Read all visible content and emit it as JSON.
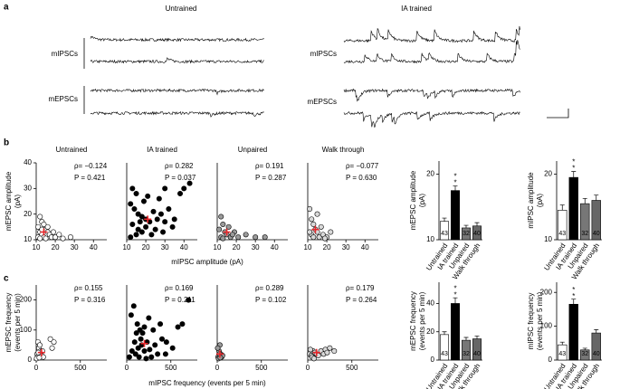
{
  "figure": {
    "a": {
      "label": "a",
      "untrained": "Untrained",
      "ia_trained": "IA trained",
      "mipsc_left": "mIPSCs",
      "mepsc_left": "mEPSCs",
      "mipsc_right": "mIPSCs",
      "mepsc_right": "mEPSCs"
    },
    "b": {
      "label": "b",
      "xlabel": "mIPSC amplitude (pA)"
    },
    "c": {
      "label": "c",
      "xlabel": "mIPSC frequency (events per 5 min)"
    }
  },
  "chart_data": [
    {
      "type": "scatter",
      "title": "Untrained",
      "ylabel": [
        "mEPSC amplitude",
        "(pA)"
      ],
      "rho_text": "ρ= −0.124",
      "p_text": "P = 0.421",
      "xlim": [
        10,
        47
      ],
      "ylim": [
        10,
        40
      ],
      "xticks": [
        10,
        20,
        30,
        40
      ],
      "yticks": [
        10,
        20,
        30,
        40
      ],
      "color": "#ffffff",
      "x": [
        12,
        13,
        11,
        14,
        15,
        12,
        13,
        16,
        11,
        14,
        17,
        18,
        12,
        15,
        20,
        22,
        19,
        13,
        16,
        28,
        24
      ],
      "y": [
        19,
        17,
        15,
        16,
        14,
        13,
        12,
        13,
        11,
        11,
        12,
        11,
        10.5,
        10.5,
        11,
        12,
        13,
        14,
        15,
        11,
        10.5
      ],
      "mean_x": 14,
      "mean_y": 13,
      "mean_color": "#e8262a"
    },
    {
      "type": "scatter",
      "title": "IA trained",
      "rho_text": "ρ= 0.282",
      "p_text": "P = 0.037",
      "xlim": [
        10,
        47
      ],
      "ylim": [
        10,
        40
      ],
      "xticks": [
        10,
        20,
        30,
        40
      ],
      "color": "#000000",
      "x": [
        13,
        15,
        12,
        14,
        16,
        18,
        20,
        17,
        13,
        22,
        24,
        19,
        21,
        26,
        28,
        30,
        32,
        25,
        23,
        15,
        18,
        12,
        35,
        38,
        43,
        40,
        30,
        27,
        20,
        16,
        29,
        34
      ],
      "y": [
        30,
        28,
        24,
        22,
        20,
        19,
        18,
        17,
        16,
        17,
        21,
        25,
        27,
        18,
        20,
        17,
        22,
        14,
        12,
        12,
        13,
        11,
        18,
        28,
        32,
        30,
        30,
        26,
        15,
        14,
        13,
        15
      ],
      "mean_x": 21,
      "mean_y": 18,
      "mean_color": "#e8262a"
    },
    {
      "type": "scatter",
      "title": "Unpaired",
      "rho_text": "ρ= 0.191",
      "p_text": "P = 0.287",
      "xlim": [
        10,
        47
      ],
      "ylim": [
        10,
        40
      ],
      "xticks": [
        10,
        20,
        30,
        40
      ],
      "color": "#9a9a9a",
      "x": [
        12,
        13,
        11,
        14,
        15,
        17,
        19,
        12,
        16,
        21,
        25,
        30,
        35,
        13,
        18
      ],
      "y": [
        19,
        16,
        14,
        13,
        12,
        11,
        13,
        11,
        15,
        11,
        12,
        11,
        11,
        10.5,
        12
      ],
      "mean_x": 15,
      "mean_y": 13,
      "mean_color": "#e8262a"
    },
    {
      "type": "scatter",
      "title": "Walk through",
      "rho_text": "ρ= −0.077",
      "p_text": "P = 0.630",
      "xlim": [
        10,
        47
      ],
      "ylim": [
        10,
        40
      ],
      "xticks": [
        10,
        20,
        30,
        40
      ],
      "color": "#d9d9d9",
      "x": [
        11,
        12,
        13,
        14,
        15,
        12,
        16,
        18,
        20,
        17,
        13,
        22,
        19,
        15,
        11
      ],
      "y": [
        22,
        18,
        16,
        14,
        13,
        12,
        11,
        12,
        11,
        15,
        11,
        13,
        10.5,
        20,
        13
      ],
      "mean_x": 14,
      "mean_y": 14,
      "mean_color": "#e8262a"
    },
    {
      "type": "bar",
      "ylabel": [
        "mEPSC amplitude",
        "(pA)"
      ],
      "ylim": [
        10,
        22
      ],
      "yticks": [
        10,
        20
      ],
      "categories": [
        "Untrained",
        "IA trained",
        "Unpaired",
        "Walk through"
      ],
      "values": [
        12.8,
        17.5,
        11.8,
        12.1
      ],
      "errors": [
        0.5,
        0.7,
        0.4,
        0.5
      ],
      "colors": [
        "#ffffff",
        "#000000",
        "#777777",
        "#666666"
      ],
      "n": [
        43,
        56,
        32,
        40
      ],
      "n_colors": [
        "#000000",
        "#ffffff",
        "#ffffff",
        "#ffffff"
      ],
      "significance": [
        null,
        [
          "*",
          "*"
        ],
        null,
        null
      ]
    },
    {
      "type": "bar",
      "ylabel": [
        "mIPSC amplitude",
        "(pA)"
      ],
      "ylim": [
        10,
        22
      ],
      "yticks": [
        10,
        20
      ],
      "categories": [
        "Untrained",
        "IA trained",
        "Unpaired",
        "Walk through"
      ],
      "values": [
        14.5,
        19.5,
        15.5,
        16
      ],
      "errors": [
        0.8,
        0.9,
        0.8,
        0.8
      ],
      "colors": [
        "#ffffff",
        "#000000",
        "#777777",
        "#666666"
      ],
      "n": [
        43,
        56,
        32,
        40
      ],
      "n_colors": [
        "#000000",
        "#ffffff",
        "#ffffff",
        "#ffffff"
      ],
      "significance": [
        null,
        [
          "*",
          "*"
        ],
        null,
        null
      ]
    },
    {
      "type": "scatter",
      "ylabel": [
        "mEPSC frequency",
        "(events per 5 min)"
      ],
      "rho_text": "ρ= 0.155",
      "p_text": "P = 0.316",
      "xlim": [
        0,
        800
      ],
      "ylim": [
        0,
        250
      ],
      "xticks": [
        0,
        500
      ],
      "yticks": [
        0,
        100,
        200
      ],
      "color": "#ffffff",
      "x": [
        10,
        30,
        20,
        50,
        15,
        60,
        5,
        40,
        80,
        25,
        160,
        200,
        180,
        35,
        70
      ],
      "y": [
        20,
        40,
        60,
        30,
        10,
        15,
        5,
        50,
        10,
        25,
        70,
        60,
        40,
        8,
        30
      ],
      "mean_x": 60,
      "mean_y": 25,
      "mean_color": "#e8262a"
    },
    {
      "type": "scatter",
      "rho_text": "ρ= 0.169",
      "p_text": "P = 0.211",
      "xlim": [
        0,
        800
      ],
      "ylim": [
        0,
        250
      ],
      "xticks": [
        0,
        500
      ],
      "color": "#000000",
      "x": [
        50,
        80,
        120,
        150,
        180,
        200,
        250,
        300,
        230,
        170,
        130,
        90,
        60,
        100,
        140,
        200,
        260,
        320,
        400,
        450,
        520,
        580,
        630,
        700,
        350,
        280,
        220,
        160,
        110,
        30,
        380,
        440
      ],
      "y": [
        150,
        180,
        120,
        100,
        90,
        110,
        140,
        100,
        60,
        50,
        40,
        60,
        30,
        20,
        10,
        30,
        35,
        50,
        70,
        60,
        40,
        110,
        120,
        200,
        20,
        10,
        5,
        70,
        90,
        10,
        120,
        20
      ],
      "mean_x": 200,
      "mean_y": 55,
      "mean_color": "#e8262a"
    },
    {
      "type": "scatter",
      "rho_text": "ρ= 0.289",
      "p_text": "P = 0.102",
      "xlim": [
        0,
        800
      ],
      "ylim": [
        0,
        250
      ],
      "xticks": [
        0,
        500
      ],
      "color": "#9a9a9a",
      "x": [
        10,
        20,
        30,
        40,
        15,
        50,
        5,
        60,
        25,
        35
      ],
      "y": [
        10,
        30,
        50,
        20,
        5,
        10,
        40,
        15,
        20,
        8
      ],
      "mean_x": 30,
      "mean_y": 20,
      "mean_color": "#e8262a"
    },
    {
      "type": "scatter",
      "rho_text": "ρ= 0.179",
      "p_text": "P = 0.264",
      "xlim": [
        0,
        800
      ],
      "ylim": [
        0,
        250
      ],
      "xticks": [
        0,
        500
      ],
      "color": "#d9d9d9",
      "x": [
        20,
        40,
        60,
        80,
        100,
        120,
        150,
        200,
        250,
        300,
        50,
        70,
        30,
        180,
        220
      ],
      "y": [
        20,
        15,
        30,
        25,
        20,
        15,
        30,
        35,
        40,
        30,
        10,
        5,
        35,
        20,
        25
      ],
      "mean_x": 100,
      "mean_y": 25,
      "mean_color": "#e8262a"
    },
    {
      "type": "bar",
      "ylabel": [
        "mEPSC frequency",
        "(events per 5 min)"
      ],
      "ylim": [
        0,
        55
      ],
      "yticks": [
        0,
        20,
        40
      ],
      "categories": [
        "Untrained",
        "IA trained",
        "Unpaired",
        "Walk through"
      ],
      "values": [
        18,
        40,
        14,
        15
      ],
      "errors": [
        2,
        4,
        2,
        2
      ],
      "colors": [
        "#ffffff",
        "#000000",
        "#777777",
        "#666666"
      ],
      "n": [
        43,
        56,
        32,
        40
      ],
      "n_colors": [
        "#000000",
        "#ffffff",
        "#ffffff",
        "#ffffff"
      ],
      "significance": [
        null,
        [
          "*",
          "*"
        ],
        null,
        null
      ]
    },
    {
      "type": "bar",
      "ylabel": [
        "mIPSC frequency",
        "(events per 5 min)"
      ],
      "ylim": [
        0,
        230
      ],
      "yticks": [
        0,
        100,
        200
      ],
      "categories": [
        "Untrained",
        "IA trained",
        "Unpaired",
        "Walk through"
      ],
      "values": [
        45,
        165,
        30,
        80
      ],
      "errors": [
        8,
        15,
        5,
        10
      ],
      "colors": [
        "#ffffff",
        "#000000",
        "#777777",
        "#666666"
      ],
      "n": [
        43,
        56,
        32,
        40
      ],
      "n_colors": [
        "#000000",
        "#ffffff",
        "#ffffff",
        "#ffffff"
      ],
      "significance": [
        null,
        [
          "*",
          "*"
        ],
        null,
        null
      ]
    }
  ]
}
